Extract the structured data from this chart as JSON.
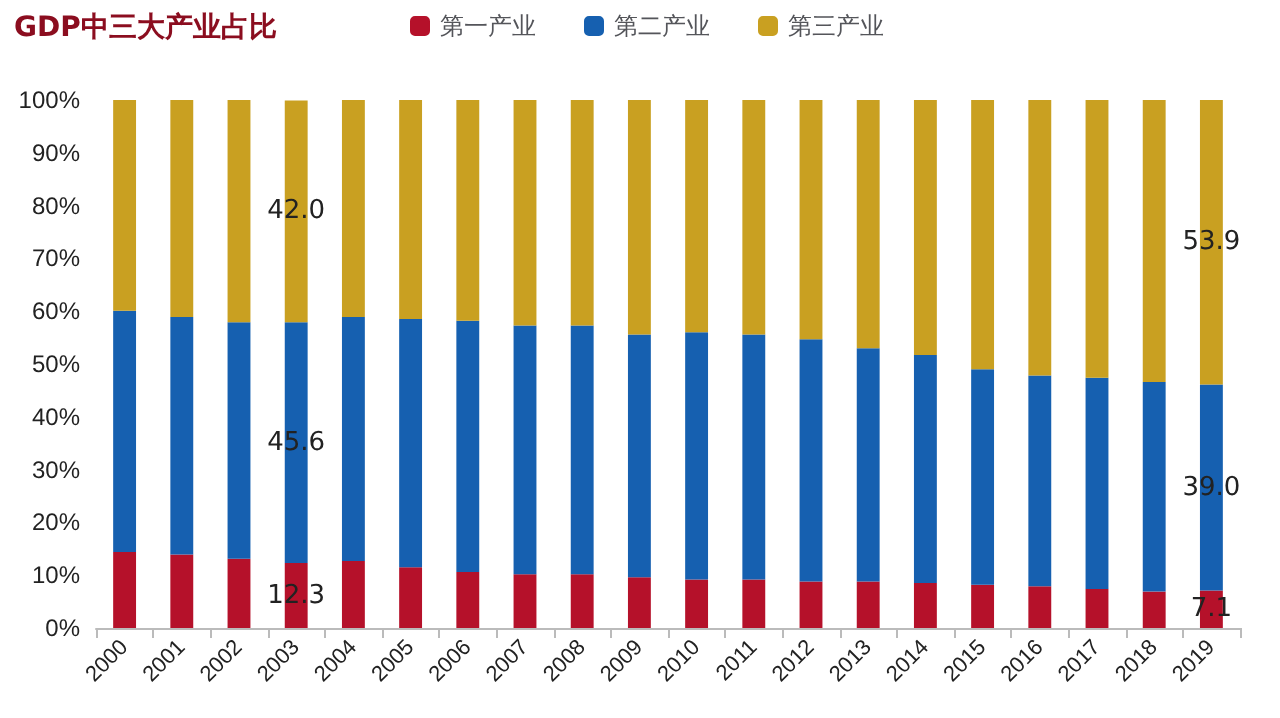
{
  "chart_data": {
    "type": "bar",
    "title": "GDP中三大产业占比",
    "stacked": true,
    "legend": "top",
    "grid": false,
    "categories": [
      "2000",
      "2001",
      "2002",
      "2003",
      "2004",
      "2005",
      "2006",
      "2007",
      "2008",
      "2009",
      "2010",
      "2011",
      "2012",
      "2013",
      "2014",
      "2015",
      "2016",
      "2017",
      "2018",
      "2019"
    ],
    "ylim": [
      0,
      100
    ],
    "yticks": [
      {
        "value": 0,
        "label": "0%"
      },
      {
        "value": 10,
        "label": "10%"
      },
      {
        "value": 20,
        "label": "20%"
      },
      {
        "value": 30,
        "label": "30%"
      },
      {
        "value": 40,
        "label": "40%"
      },
      {
        "value": 50,
        "label": "50%"
      },
      {
        "value": 60,
        "label": "60%"
      },
      {
        "value": 70,
        "label": "70%"
      },
      {
        "value": 80,
        "label": "80%"
      },
      {
        "value": 90,
        "label": "90%"
      },
      {
        "value": 100,
        "label": "100%"
      }
    ],
    "series": [
      {
        "name": "第一产业",
        "color": "#b5112a",
        "values": [
          14.4,
          13.9,
          13.1,
          12.3,
          12.7,
          11.5,
          10.6,
          10.2,
          10.2,
          9.6,
          9.2,
          9.2,
          8.8,
          8.8,
          8.5,
          8.2,
          7.9,
          7.4,
          6.9,
          7.1
        ],
        "value_labels": [
          null,
          null,
          null,
          "12.3",
          null,
          null,
          null,
          null,
          null,
          null,
          null,
          null,
          null,
          null,
          null,
          null,
          null,
          null,
          null,
          "7.1"
        ]
      },
      {
        "name": "第二产业",
        "color": "#1660b0",
        "values": [
          45.7,
          45.0,
          44.8,
          45.6,
          46.2,
          47.0,
          47.6,
          47.1,
          47.1,
          46.0,
          46.8,
          46.4,
          45.9,
          44.2,
          43.2,
          40.8,
          39.9,
          40.0,
          39.7,
          39.0
        ],
        "value_labels": [
          null,
          null,
          null,
          "45.6",
          null,
          null,
          null,
          null,
          null,
          null,
          null,
          null,
          null,
          null,
          null,
          null,
          null,
          null,
          null,
          "39.0"
        ]
      },
      {
        "name": "第三产业",
        "color": "#c9a021",
        "values": [
          39.9,
          41.1,
          42.1,
          42.0,
          41.1,
          41.5,
          41.8,
          42.7,
          42.7,
          44.4,
          44.0,
          44.4,
          45.3,
          47.0,
          48.3,
          51.0,
          52.2,
          52.6,
          53.4,
          53.9
        ],
        "value_labels": [
          null,
          null,
          null,
          "42.0",
          null,
          null,
          null,
          null,
          null,
          null,
          null,
          null,
          null,
          null,
          null,
          null,
          null,
          null,
          null,
          "53.9"
        ]
      }
    ]
  }
}
